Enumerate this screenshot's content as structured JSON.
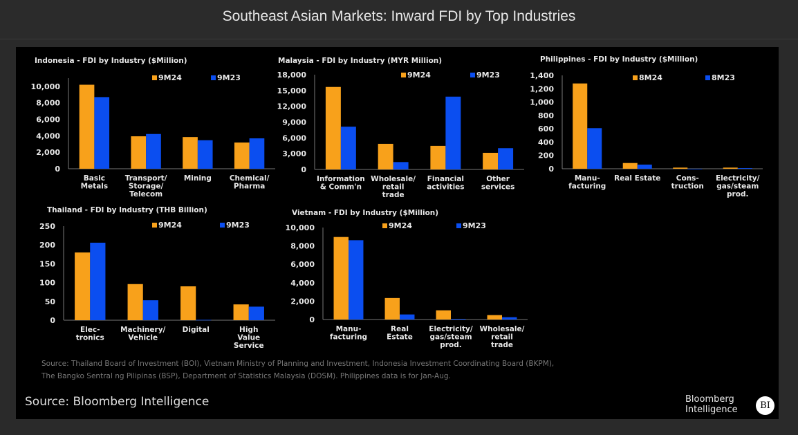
{
  "page_title": "Southeast Asian Markets: Inward FDI by Top Industries",
  "colors": {
    "current": "#f8a11b",
    "previous": "#0b4ef0",
    "background": "#000000"
  },
  "notes": [
    "Source: Thailand Board of Investment (BOI), Vietnam Ministry of Planning and Investment, Indonesia Investment Coordinating Board (BKPM),",
    "The Bangko Sentral ng Pilipinas (BSP), Department of Statistics Malaysia (DOSM). Philippines data is for Jan-Aug."
  ],
  "source": "Source: Bloomberg Intelligence",
  "logo": {
    "line1": "Bloomberg",
    "line2": "Intelligence",
    "badge": "BI"
  },
  "chart_data": [
    {
      "type": "bar",
      "title": "Indonesia - FDI by Industry ($Million)",
      "categories": [
        "Basic\nMetals",
        "Transport/\nStorage/\nTelecom",
        "Mining",
        "Chemical/\nPharma"
      ],
      "series": [
        {
          "name": "9M24",
          "values": [
            10200,
            3940,
            3850,
            3180
          ]
        },
        {
          "name": "9M23",
          "values": [
            8700,
            4220,
            3460,
            3690
          ]
        }
      ],
      "ylim": [
        0,
        11000
      ],
      "yticks": [
        0,
        2000,
        4000,
        6000,
        8000,
        10000
      ],
      "ytick_labels": [
        "0",
        "2,000",
        "4,000",
        "6,000",
        "8,000",
        "10,000"
      ],
      "legend": "top-right",
      "grid": false
    },
    {
      "type": "bar",
      "title": "Malaysia - FDI by Industry (MYR Million)",
      "categories": [
        "Information\n& Comm'n",
        "Wholesale/\nretail\ntrade",
        "Financial\nactivities",
        "Other\nservices"
      ],
      "series": [
        {
          "name": "9M24",
          "values": [
            15670,
            4870,
            4480,
            3160
          ]
        },
        {
          "name": "9M23",
          "values": [
            8120,
            1400,
            13830,
            4040
          ]
        }
      ],
      "ylim": [
        0,
        18000
      ],
      "yticks": [
        0,
        3000,
        6000,
        9000,
        12000,
        15000,
        18000
      ],
      "ytick_labels": [
        "0",
        "3,000",
        "6,000",
        "9,000",
        "12,000",
        "15,000",
        "18,000"
      ],
      "legend": "top-right",
      "grid": false
    },
    {
      "type": "bar",
      "title": "Philippines - FDI by Industry ($Million)",
      "categories": [
        "Manu-\nfacturing",
        "Real Estate",
        "Cons-\ntruction",
        "Electricity/\ngas/steam\nprod."
      ],
      "series": [
        {
          "name": "8M24",
          "values": [
            1279,
            86,
            17,
            17
          ]
        },
        {
          "name": "8M23",
          "values": [
            609,
            62,
            0,
            10
          ]
        }
      ],
      "ylim": [
        0,
        1400
      ],
      "yticks": [
        0,
        200,
        400,
        600,
        800,
        1000,
        1200,
        1400
      ],
      "ytick_labels": [
        "0",
        "200",
        "400",
        "600",
        "800",
        "1,000",
        "1,200",
        "1,400"
      ],
      "legend": "top-right",
      "grid": false
    },
    {
      "type": "bar",
      "title": "Thailand - FDI by Industry (THB Billion)",
      "categories": [
        "Elec-\ntronics",
        "Machinery/\nVehicle",
        "Digital",
        "High\nValue\nService"
      ],
      "series": [
        {
          "name": "9M24",
          "values": [
            180,
            96,
            90,
            42
          ]
        },
        {
          "name": "9M23",
          "values": [
            206,
            53,
            1,
            36
          ]
        }
      ],
      "ylim": [
        0,
        250
      ],
      "yticks": [
        0,
        50,
        100,
        150,
        200,
        250
      ],
      "ytick_labels": [
        "0",
        "50",
        "100",
        "150",
        "200",
        "250"
      ],
      "legend": "top-right",
      "grid": false
    },
    {
      "type": "bar",
      "title": "Vietnam - FDI by Industry ($Million)",
      "categories": [
        "Manu-\nfacturing",
        "Real\nEstate",
        "Electricity/\ngas/steam\nprod.",
        "Wholesale/\nretail\ntrade"
      ],
      "series": [
        {
          "name": "9M24",
          "values": [
            8970,
            2340,
            1000,
            480
          ]
        },
        {
          "name": "9M23",
          "values": [
            8620,
            550,
            75,
            250
          ]
        }
      ],
      "ylim": [
        0,
        10000
      ],
      "yticks": [
        0,
        2000,
        4000,
        6000,
        8000,
        10000
      ],
      "ytick_labels": [
        "0",
        "2,000",
        "4,000",
        "6,000",
        "8,000",
        "10,000"
      ],
      "legend": "top-right",
      "grid": false
    }
  ]
}
